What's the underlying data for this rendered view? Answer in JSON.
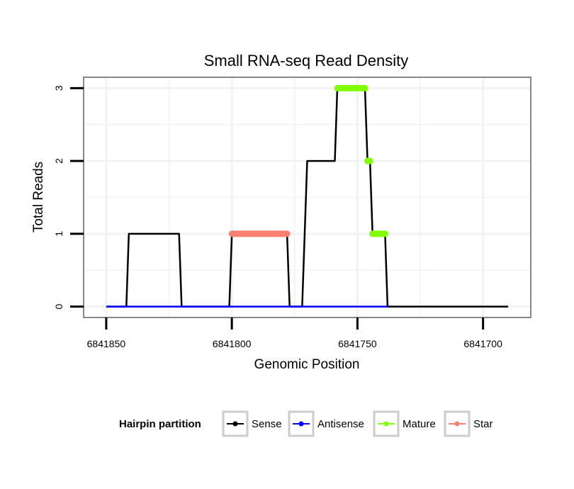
{
  "chart_data": {
    "type": "line",
    "title": "Small RNA-seq Read Density",
    "xlabel": "Genomic Position",
    "ylabel": "Total Reads",
    "x_reversed": true,
    "xlim": [
      6841859,
      6841681
    ],
    "ylim": [
      -0.15,
      3.15
    ],
    "x_ticks": [
      6841850,
      6841800,
      6841750,
      6841700
    ],
    "x_tick_labels": [
      "6841850",
      "6841800",
      "6841750",
      "6841700"
    ],
    "y_ticks": [
      0,
      1,
      2,
      3
    ],
    "y_tick_labels": [
      "0",
      "1",
      "2",
      "3"
    ],
    "grid": true,
    "legend": {
      "title": "Hairpin partition",
      "position": "bottom",
      "entries": [
        {
          "label": "Sense",
          "color": "#000000"
        },
        {
          "label": "Antisense",
          "color": "#0000ff"
        },
        {
          "label": "Mature",
          "color": "#7fff00"
        },
        {
          "label": "Star",
          "color": "#fa8072"
        }
      ]
    },
    "series": [
      {
        "name": "Sense",
        "color": "#000000",
        "points": [
          [
            6841850,
            0
          ],
          [
            6841842,
            0
          ],
          [
            6841841,
            1
          ],
          [
            6841821,
            1
          ],
          [
            6841820,
            0
          ],
          [
            6841801,
            0
          ],
          [
            6841800,
            1
          ],
          [
            6841778,
            1
          ],
          [
            6841777,
            0
          ],
          [
            6841772,
            0
          ],
          [
            6841770,
            2
          ],
          [
            6841759,
            2
          ],
          [
            6841758,
            3
          ],
          [
            6841747,
            3
          ],
          [
            6841746,
            2
          ],
          [
            6841745,
            2
          ],
          [
            6841744,
            1
          ],
          [
            6841739,
            1
          ],
          [
            6841738,
            0
          ],
          [
            6841690,
            0
          ]
        ]
      },
      {
        "name": "Antisense",
        "color": "#0000ff",
        "points": [
          [
            6841850,
            0
          ],
          [
            6841738,
            0
          ]
        ]
      },
      {
        "name": "Mature",
        "color": "#7fff00",
        "segments": [
          {
            "x": [
              6841758,
              6841747
            ],
            "y": 3
          },
          {
            "x": [
              6841746,
              6841745
            ],
            "y": 2
          },
          {
            "x": [
              6841744,
              6841739
            ],
            "y": 1
          }
        ]
      },
      {
        "name": "Star",
        "color": "#fa8072",
        "segments": [
          {
            "x": [
              6841800,
              6841778
            ],
            "y": 1
          }
        ]
      }
    ]
  }
}
